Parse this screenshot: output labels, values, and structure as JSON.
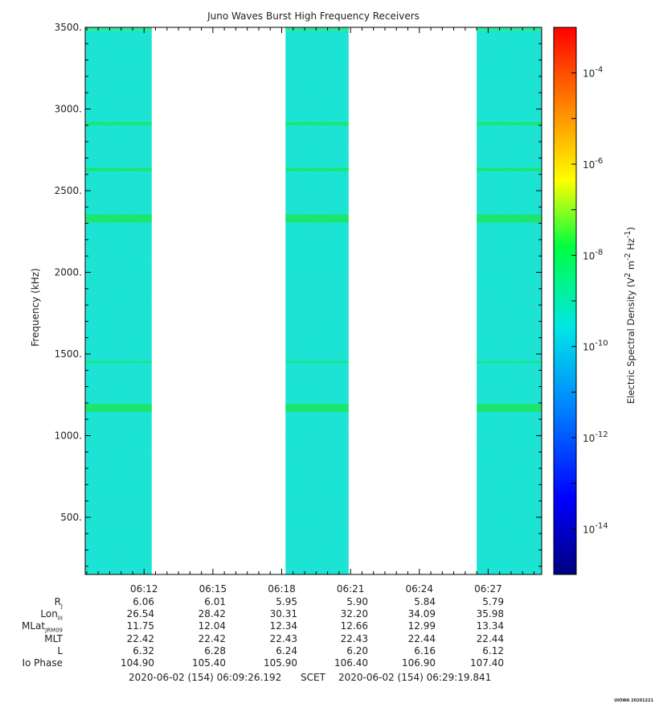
{
  "chart_data": {
    "type": "heatmap",
    "title": "Juno Waves Burst High Frequency Receivers",
    "ylabel": "Frequency (kHz)",
    "ylim": [
      150,
      3500
    ],
    "yticks": [
      3500,
      3000,
      2500,
      2000,
      1500,
      1000,
      500
    ],
    "ytick_labels": [
      "3500.",
      "3000.",
      "2500.",
      "2000.",
      "1500.",
      "1000.",
      "500."
    ],
    "xlim_minutes": [
      "06:09:26",
      "06:29:20"
    ],
    "xtick_labels": [
      "06:12",
      "06:15",
      "06:18",
      "06:21",
      "06:24",
      "06:27"
    ],
    "data_intervals": [
      {
        "start": "06:09:26",
        "end": "06:12:20"
      },
      {
        "start": "06:18:10",
        "end": "06:20:55"
      },
      {
        "start": "06:26:30",
        "end": "06:29:20"
      }
    ],
    "emission_bands_khz": [
      2910,
      2630,
      2330,
      1450,
      1170
    ],
    "colorbar": {
      "label": "Electric Spectral Density (V² m⁻² Hz⁻¹)",
      "scale": "log",
      "range": [
        1e-15,
        0.001
      ],
      "ticks": [
        "10-4",
        "10-6",
        "10-8",
        "10-10",
        "10-12",
        "10-14"
      ],
      "tick_exponents": [
        -4,
        -6,
        -8,
        -10,
        -12,
        -14
      ]
    },
    "background_color": "#19e6d2",
    "band_color": "#1ee64a",
    "colormap": [
      "#00007f",
      "#0000ff",
      "#0080ff",
      "#00e6e6",
      "#00ff40",
      "#ffff00",
      "#ff8000",
      "#ff0000"
    ]
  },
  "ephemeris": {
    "rows": [
      {
        "label": "R",
        "sub": "J",
        "values": [
          "6.06",
          "6.01",
          "5.95",
          "5.90",
          "5.84",
          "5.79"
        ]
      },
      {
        "label": "Lon",
        "sub": "III",
        "values": [
          "26.54",
          "28.42",
          "30.31",
          "32.20",
          "34.09",
          "35.98"
        ]
      },
      {
        "label": "MLat",
        "sub": "JRM09",
        "values": [
          "11.75",
          "12.04",
          "12.34",
          "12.66",
          "12.99",
          "13.34"
        ]
      },
      {
        "label": "MLT",
        "sub": "",
        "values": [
          "22.42",
          "22.42",
          "22.43",
          "22.43",
          "22.44",
          "22.44"
        ]
      },
      {
        "label": "L",
        "sub": "",
        "values": [
          "6.32",
          "6.28",
          "6.24",
          "6.20",
          "6.16",
          "6.12"
        ]
      },
      {
        "label": "Io Phase",
        "sub": "",
        "values": [
          "104.90",
          "105.40",
          "105.90",
          "106.40",
          "106.90",
          "107.40"
        ]
      }
    ]
  },
  "footer": {
    "start": "2020-06-02 (154) 06:09:26.192",
    "middle": "SCET",
    "end": "2020-06-02 (154) 06:29:19.841"
  },
  "credit": "UIOWA 20201221"
}
